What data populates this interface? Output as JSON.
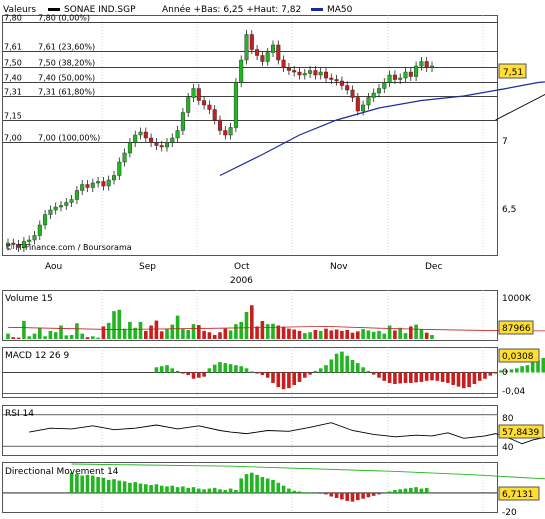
{
  "header": {
    "valeurs_label": "Valeurs",
    "symbol_label": "SONAE IND.SGP",
    "range_label": "Année +Bas: 6,25 +Haut: 7,82",
    "ma_label": "MA50"
  },
  "credit": "© IT-Finance.com / Boursorama",
  "colors": {
    "up": "#22b522",
    "down": "#c81e1e",
    "ma": "#1c2aa0",
    "callout": "#ffdd33",
    "grid": "#b8b8b8",
    "line": "#000000"
  },
  "chart_data": [
    {
      "type": "candlestick",
      "title": "SONAE IND.SGP",
      "ylim": [
        6.25,
        7.85
      ],
      "yticks": [
        "7",
        "6,5"
      ],
      "xticks": [
        "Aou",
        "Sep",
        "Oct",
        "Nov",
        "Dec"
      ],
      "xsub": "2006",
      "last_value": "7,51",
      "fib_levels": [
        {
          "value": 7.8,
          "axis_label": "7,80",
          "label": "7,80 (0,00%)"
        },
        {
          "value": 7.61,
          "axis_label": "7,61",
          "label": "7,61 (23,60%)"
        },
        {
          "value": 7.5,
          "axis_label": "7,50",
          "label": "7,50 (38,20%)"
        },
        {
          "value": 7.4,
          "axis_label": "7,40",
          "label": "7,40 (50,00%)"
        },
        {
          "value": 7.31,
          "axis_label": "7,31",
          "label": "7,31 (61,80%)"
        },
        {
          "value": 7.15,
          "axis_label": "7,15",
          "label": ""
        },
        {
          "value": 7.0,
          "axis_label": "7,00",
          "label": "7,00 (100,00%)"
        }
      ],
      "closes": [
        6.33,
        6.32,
        6.3,
        6.34,
        6.35,
        6.38,
        6.45,
        6.52,
        6.55,
        6.57,
        6.58,
        6.6,
        6.62,
        6.68,
        6.72,
        6.7,
        6.73,
        6.74,
        6.71,
        6.75,
        6.78,
        6.87,
        6.93,
        7.0,
        7.05,
        7.07,
        7.03,
        7.0,
        6.98,
        6.97,
        7.0,
        7.03,
        7.08,
        7.2,
        7.3,
        7.36,
        7.28,
        7.25,
        7.22,
        7.15,
        7.08,
        7.05,
        7.1,
        7.4,
        7.55,
        7.72,
        7.62,
        7.58,
        7.54,
        7.6,
        7.65,
        7.55,
        7.5,
        7.48,
        7.47,
        7.45,
        7.46,
        7.48,
        7.45,
        7.47,
        7.43,
        7.42,
        7.41,
        7.38,
        7.35,
        7.3,
        7.21,
        7.25,
        7.3,
        7.33,
        7.36,
        7.4,
        7.45,
        7.42,
        7.43,
        7.47,
        7.44,
        7.51,
        7.54,
        7.5,
        7.51
      ],
      "ma50": [
        [
          40,
          6.78
        ],
        [
          48,
          6.92
        ],
        [
          55,
          7.05
        ],
        [
          62,
          7.15
        ],
        [
          70,
          7.23
        ],
        [
          78,
          7.28
        ],
        [
          86,
          7.31
        ],
        [
          94,
          7.36
        ],
        [
          100,
          7.4
        ],
        [
          106,
          7.42
        ],
        [
          108,
          7.42
        ]
      ],
      "trendline": [
        [
          92,
          7.15
        ],
        [
          121,
          7.68
        ]
      ]
    },
    {
      "type": "bar",
      "title": "Volume 15",
      "ytick_label": "1000K",
      "last_value": "87966",
      "ymax": 1000,
      "values": [
        120,
        40,
        30,
        400,
        60,
        120,
        250,
        60,
        180,
        150,
        300,
        80,
        90,
        350,
        120,
        40,
        60,
        30,
        280,
        360,
        620,
        650,
        230,
        380,
        250,
        380,
        180,
        300,
        410,
        170,
        230,
        320,
        520,
        220,
        200,
        330,
        310,
        180,
        150,
        90,
        150,
        230,
        190,
        330,
        380,
        600,
        750,
        280,
        400,
        330,
        340,
        300,
        270,
        230,
        210,
        180,
        130,
        150,
        200,
        180,
        230,
        190,
        210,
        180,
        200,
        140,
        170,
        220,
        190,
        160,
        180,
        120,
        300,
        190,
        250,
        130,
        280,
        320,
        210,
        140,
        88
      ],
      "ma": [
        [
          0,
          260
        ],
        [
          20,
          210
        ],
        [
          40,
          240
        ],
        [
          60,
          280
        ],
        [
          70,
          240
        ],
        [
          80,
          210
        ],
        [
          90,
          190
        ],
        [
          100,
          180
        ],
        [
          108,
          180
        ]
      ]
    },
    {
      "type": "bar",
      "title": "MACD 12 26 9",
      "ytick_labels": [
        "0",
        "-0,04"
      ],
      "last_value": "0,0308",
      "ylim": [
        -0.045,
        0.045
      ],
      "values": [
        0.01,
        0.012,
        0.014,
        0.008,
        0.003,
        -0.002,
        -0.005,
        -0.012,
        -0.01,
        -0.008,
        0.008,
        0.015,
        0.02,
        0.018,
        0.016,
        0.014,
        0.012,
        0.008,
        0.002,
        -0.002,
        -0.005,
        -0.01,
        -0.02,
        -0.028,
        -0.032,
        -0.03,
        -0.024,
        -0.018,
        -0.01,
        -0.004,
        0.003,
        0.008,
        0.014,
        0.025,
        0.036,
        0.04,
        0.032,
        0.024,
        0.018,
        0.01,
        0.003,
        -0.004,
        -0.01,
        -0.016,
        -0.02,
        -0.022,
        -0.021,
        -0.02,
        -0.02,
        -0.019,
        -0.018,
        -0.016,
        -0.015,
        -0.016,
        -0.018,
        -0.02,
        -0.024,
        -0.027,
        -0.03,
        -0.028,
        -0.022,
        -0.016,
        -0.012,
        -0.006,
        -0.002,
        0.004,
        0.004,
        0.006,
        0.008,
        0.012,
        0.014,
        0.02,
        0.024,
        0.028,
        0.03,
        0.031,
        0.031
      ]
    },
    {
      "type": "line",
      "title": "RSI 14",
      "ytick_labels": [
        "80",
        "40"
      ],
      "last_value": "57,8439",
      "ylim": [
        30,
        90
      ],
      "values": [
        [
          0,
          58
        ],
        [
          4,
          63
        ],
        [
          8,
          62
        ],
        [
          12,
          66
        ],
        [
          16,
          61
        ],
        [
          20,
          63
        ],
        [
          24,
          67
        ],
        [
          28,
          62
        ],
        [
          32,
          66
        ],
        [
          36,
          60
        ],
        [
          38,
          58
        ],
        [
          41,
          56
        ],
        [
          45,
          60
        ],
        [
          49,
          59
        ],
        [
          53,
          64
        ],
        [
          57,
          70
        ],
        [
          61,
          60
        ],
        [
          65,
          55
        ],
        [
          69,
          52
        ],
        [
          73,
          54
        ],
        [
          76,
          53
        ],
        [
          79,
          57
        ],
        [
          82,
          50
        ],
        [
          86,
          53
        ],
        [
          88,
          56
        ],
        [
          91,
          49
        ],
        [
          93,
          43
        ],
        [
          95,
          48
        ],
        [
          98,
          52
        ],
        [
          101,
          56
        ],
        [
          104,
          52
        ],
        [
          107,
          54
        ],
        [
          111,
          58
        ],
        [
          116,
          57
        ],
        [
          121,
          58
        ]
      ]
    },
    {
      "type": "bar",
      "title": "Directional Movement 14",
      "ytick_label": "-20",
      "last_value": "6,7131",
      "ylim": [
        -25,
        40
      ],
      "values": [
        28,
        26,
        24,
        25,
        24,
        22,
        21,
        18,
        19,
        17,
        16,
        14,
        15,
        13,
        12,
        11,
        12,
        10,
        9,
        10,
        8,
        9,
        7,
        8,
        6,
        5,
        6,
        7,
        5,
        4,
        6,
        4,
        20,
        26,
        28,
        25,
        22,
        20,
        18,
        14,
        10,
        6,
        3,
        2,
        1,
        1,
        0,
        -1,
        -2,
        -5,
        -7,
        -9,
        -11,
        -12,
        -10,
        -8,
        -6,
        -4,
        -2,
        0,
        2,
        4,
        5,
        6,
        7,
        8,
        6,
        7
      ],
      "line": [
        [
          0,
          40
        ],
        [
          30,
          37
        ],
        [
          60,
          30
        ],
        [
          76,
          25
        ],
        [
          88,
          20
        ],
        [
          100,
          16
        ],
        [
          108,
          15
        ]
      ]
    }
  ]
}
